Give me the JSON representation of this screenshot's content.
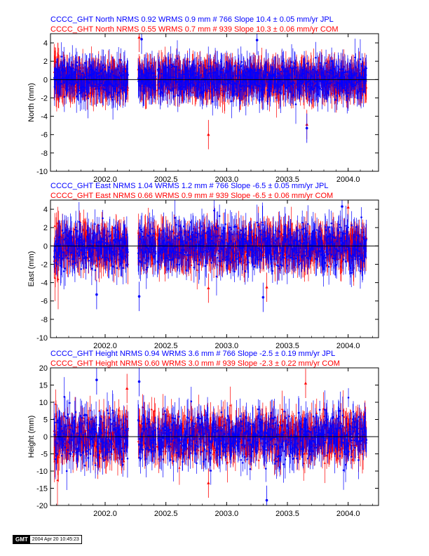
{
  "chart_data": [
    {
      "type": "scatter",
      "ylabel": "North (mm)",
      "ylim": [
        -10,
        5
      ],
      "yticks": [
        -10,
        -8,
        -6,
        -4,
        -2,
        0,
        2,
        4
      ],
      "xlim": [
        2001.55,
        2004.25
      ],
      "xticks": [
        "2002.0",
        "2002.5",
        "2003.0",
        "2003.5",
        "2004.0"
      ],
      "series": [
        {
          "name": "CCCC_GHT North NRMS 0.92 WRMS  0.9 mm # 766 Slope   10.4 ±  0.05 mm/yr JPL",
          "color": "#0000ff",
          "marker": "circle",
          "n": 766,
          "sigma": 0.9,
          "x_start": 2001.58,
          "x_end": 2004.15,
          "outliers": [
            {
              "x": 2003.66,
              "y": -5.3
            },
            {
              "x": 2002.3,
              "y": 4.4
            },
            {
              "x": 2003.25,
              "y": 4.3
            }
          ]
        },
        {
          "name": "CCCC_GHT North NRMS 0.55 WRMS  0.7 mm # 939 Slope   10.3 ±  0.06 mm/yr COM",
          "color": "#ff0000",
          "marker": "triangle",
          "n": 939,
          "sigma": 0.7,
          "x_start": 2001.58,
          "x_end": 2004.15,
          "outliers": [
            {
              "x": 2002.85,
              "y": -6.0
            },
            {
              "x": 2003.66,
              "y": -4.9
            },
            {
              "x": 2002.28,
              "y": 4.6
            }
          ]
        }
      ]
    },
    {
      "type": "scatter",
      "ylabel": "East (mm)",
      "ylim": [
        -10,
        5
      ],
      "yticks": [
        -10,
        -8,
        -6,
        -4,
        -2,
        0,
        2,
        4
      ],
      "xlim": [
        2001.55,
        2004.25
      ],
      "xticks": [
        "2002.0",
        "2002.5",
        "2003.0",
        "2003.5",
        "2004.0"
      ],
      "series": [
        {
          "name": "CCCC_GHT East NRMS 1.04 WRMS  1.2 mm # 766 Slope   -6.5 ±  0.05 mm/yr JPL",
          "color": "#0000ff",
          "marker": "circle",
          "n": 766,
          "sigma": 1.2,
          "x_start": 2001.58,
          "x_end": 2004.15,
          "outliers": [
            {
              "x": 2001.93,
              "y": -5.3
            },
            {
              "x": 2002.28,
              "y": -5.5
            },
            {
              "x": 2003.3,
              "y": -5.6
            },
            {
              "x": 2003.95,
              "y": 4.3
            }
          ]
        },
        {
          "name": "CCCC_GHT East NRMS 0.66 WRMS  0.9 mm # 939 Slope   -6.5 ±  0.06 mm/yr COM",
          "color": "#ff0000",
          "marker": "triangle",
          "n": 939,
          "sigma": 0.9,
          "x_start": 2001.58,
          "x_end": 2004.15,
          "outliers": [
            {
              "x": 2002.85,
              "y": -4.6
            },
            {
              "x": 2003.33,
              "y": -4.5
            },
            {
              "x": 2004.0,
              "y": 4.2
            }
          ]
        }
      ]
    },
    {
      "type": "scatter",
      "ylabel": "Height (mm)",
      "ylim": [
        -20,
        20
      ],
      "yticks": [
        -20,
        -15,
        -10,
        -5,
        0,
        5,
        10,
        15,
        20
      ],
      "xlim": [
        2001.55,
        2004.25
      ],
      "xticks": [
        "2002.0",
        "2002.5",
        "2003.0",
        "2003.5",
        "2004.0"
      ],
      "series": [
        {
          "name": "CCCC_GHT Height NRMS 0.94 WRMS  3.6 mm # 766 Slope   -2.5 ±  0.19 mm/yr JPL",
          "color": "#0000ff",
          "marker": "circle",
          "n": 766,
          "sigma": 3.6,
          "x_start": 2001.58,
          "x_end": 2004.15,
          "outliers": [
            {
              "x": 2001.93,
              "y": 16.5
            },
            {
              "x": 2002.28,
              "y": 16.0
            },
            {
              "x": 2003.33,
              "y": -18.5
            }
          ]
        },
        {
          "name": "CCCC_GHT Height NRMS 0.60 WRMS  3.0 mm # 939 Slope   -2.3 ±  0.22 mm/yr COM",
          "color": "#ff0000",
          "marker": "triangle",
          "n": 939,
          "sigma": 3.0,
          "x_start": 2001.58,
          "x_end": 2004.15,
          "outliers": [
            {
              "x": 2002.18,
              "y": 14.0
            },
            {
              "x": 2002.85,
              "y": -13.5
            },
            {
              "x": 2003.65,
              "y": 15.5
            }
          ]
        }
      ]
    }
  ],
  "footer": {
    "logo": "GMT",
    "timestamp": "2004 Apr 20 10:45:23"
  }
}
